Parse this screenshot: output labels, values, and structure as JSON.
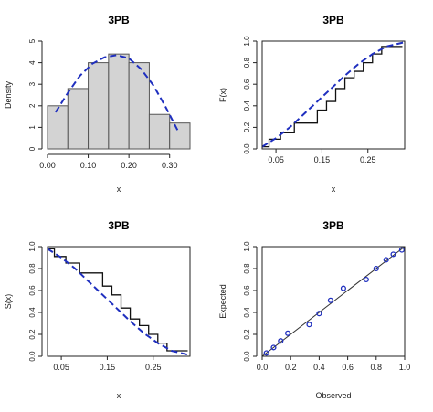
{
  "chart_data": [
    {
      "type": "bar",
      "panel": "histogram-density",
      "title": "3PB",
      "xlabel": "x",
      "ylabel": "Density",
      "xlim": [
        0.0,
        0.35
      ],
      "ylim": [
        0,
        5
      ],
      "xticks": [
        "0.00",
        "0.10",
        "0.20",
        "0.30"
      ],
      "yticks": [
        "0",
        "1",
        "2",
        "3",
        "4",
        "5"
      ],
      "bin_edges": [
        0.0,
        0.05,
        0.1,
        0.15,
        0.2,
        0.25,
        0.3,
        0.35
      ],
      "values": [
        2.0,
        2.8,
        4.0,
        4.4,
        4.0,
        1.6,
        1.2
      ],
      "fitted_density": {
        "x": [
          0.02,
          0.05,
          0.08,
          0.11,
          0.14,
          0.17,
          0.2,
          0.23,
          0.26,
          0.29,
          0.32
        ],
        "y": [
          1.7,
          2.6,
          3.4,
          3.95,
          4.25,
          4.35,
          4.2,
          3.7,
          2.95,
          1.95,
          0.85
        ]
      },
      "bar_fill": "#d3d3d3",
      "curve_color": "#1f2fbf"
    },
    {
      "type": "line",
      "panel": "cdf",
      "title": "3PB",
      "xlabel": "x",
      "ylabel": "F(x)",
      "xlim": [
        0.02,
        0.33
      ],
      "ylim": [
        0,
        1
      ],
      "xticks": [
        "0.05",
        "0.15",
        "0.25"
      ],
      "yticks": [
        "0.0",
        "0.2",
        "0.4",
        "0.6",
        "0.8",
        "1.0"
      ],
      "empirical_steps": {
        "x": [
          0.02,
          0.035,
          0.06,
          0.09,
          0.12,
          0.14,
          0.16,
          0.18,
          0.2,
          0.22,
          0.24,
          0.26,
          0.28,
          0.31
        ],
        "y": [
          0.02,
          0.09,
          0.15,
          0.24,
          0.24,
          0.36,
          0.44,
          0.56,
          0.66,
          0.72,
          0.8,
          0.88,
          0.95,
          0.95
        ]
      },
      "fitted_curve": {
        "x": [
          0.02,
          0.05,
          0.08,
          0.11,
          0.14,
          0.17,
          0.2,
          0.23,
          0.26,
          0.29,
          0.33
        ],
        "y": [
          0.02,
          0.1,
          0.2,
          0.32,
          0.44,
          0.56,
          0.68,
          0.79,
          0.88,
          0.95,
          0.99
        ]
      },
      "curve_color": "#1f2fbf"
    },
    {
      "type": "line",
      "panel": "survival",
      "title": "3PB",
      "xlabel": "x",
      "ylabel": "S(x)",
      "xlim": [
        0.02,
        0.33
      ],
      "ylim": [
        0,
        1
      ],
      "xticks": [
        "0.05",
        "0.15",
        "0.25"
      ],
      "yticks": [
        "0.0",
        "0.2",
        "0.4",
        "0.6",
        "0.8",
        "1.0"
      ],
      "empirical_steps": {
        "x": [
          0.02,
          0.035,
          0.06,
          0.09,
          0.12,
          0.14,
          0.16,
          0.18,
          0.2,
          0.22,
          0.24,
          0.26,
          0.28,
          0.31
        ],
        "y": [
          0.98,
          0.91,
          0.85,
          0.76,
          0.76,
          0.64,
          0.56,
          0.44,
          0.34,
          0.28,
          0.2,
          0.12,
          0.05,
          0.05
        ]
      },
      "fitted_curve": {
        "x": [
          0.02,
          0.05,
          0.08,
          0.11,
          0.14,
          0.17,
          0.2,
          0.23,
          0.26,
          0.29,
          0.33
        ],
        "y": [
          0.98,
          0.9,
          0.8,
          0.68,
          0.56,
          0.44,
          0.32,
          0.21,
          0.12,
          0.05,
          0.01
        ]
      },
      "curve_color": "#1f2fbf"
    },
    {
      "type": "scatter",
      "panel": "pp-plot",
      "title": "3PB",
      "xlabel": "Observed",
      "ylabel": "Expected",
      "xlim": [
        0,
        1
      ],
      "ylim": [
        0,
        1
      ],
      "xticks": [
        "0.0",
        "0.2",
        "0.4",
        "0.6",
        "0.8",
        "1.0"
      ],
      "yticks": [
        "0.0",
        "0.2",
        "0.4",
        "0.6",
        "0.8",
        "1.0"
      ],
      "points": {
        "x": [
          0.03,
          0.08,
          0.13,
          0.18,
          0.33,
          0.4,
          0.48,
          0.57,
          0.73,
          0.8,
          0.87,
          0.92,
          0.98
        ],
        "y": [
          0.03,
          0.08,
          0.14,
          0.21,
          0.29,
          0.39,
          0.51,
          0.62,
          0.7,
          0.8,
          0.88,
          0.93,
          0.97
        ]
      },
      "reference_line": {
        "x": [
          0,
          1
        ],
        "y": [
          0,
          1
        ]
      },
      "point_color": "#1f2fbf"
    }
  ]
}
